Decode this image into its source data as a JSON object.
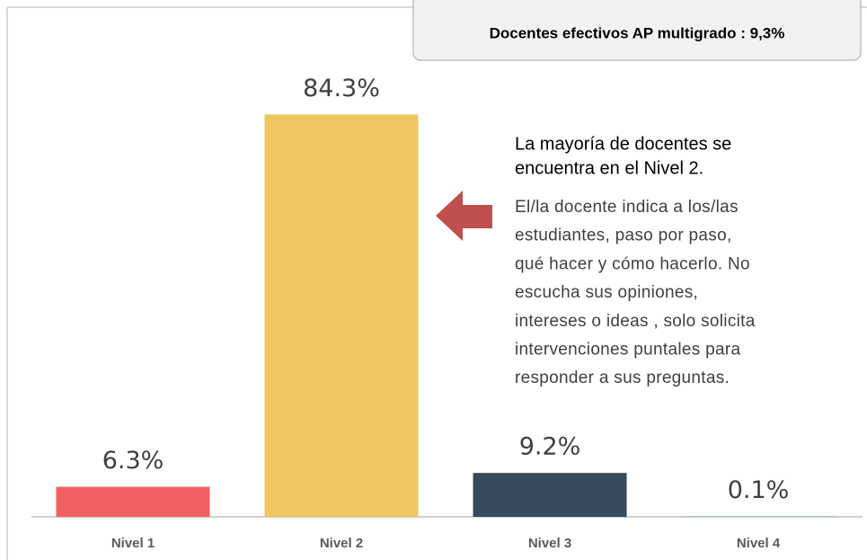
{
  "chart_data": {
    "type": "bar",
    "categories": [
      "Nivel 1",
      "Nivel 2",
      "Nivel 3",
      "Nivel 4"
    ],
    "values": [
      6.3,
      84.3,
      9.2,
      0.1
    ],
    "value_labels": [
      "6.3%",
      "84.3%",
      "9.2%",
      "0.1%"
    ],
    "colors": [
      "#f26161",
      "#efc661",
      "#354b5e",
      "#7fb3d5"
    ],
    "ylim": [
      0,
      100
    ],
    "badge": "Docentes efectivos AP multigrado : 9,3%",
    "annotation": {
      "heading": [
        "La mayoría de docentes se",
        "encuentra en el Nivel 2."
      ],
      "body": [
        "El/la docente indica a los/las",
        "estudiantes, paso por paso,",
        "qué hacer y cómo hacerlo. No",
        "escucha sus opiniones,",
        "intereses o ideas , solo solicita",
        "intervenciones puntales para",
        "responder a sus preguntas."
      ]
    }
  }
}
